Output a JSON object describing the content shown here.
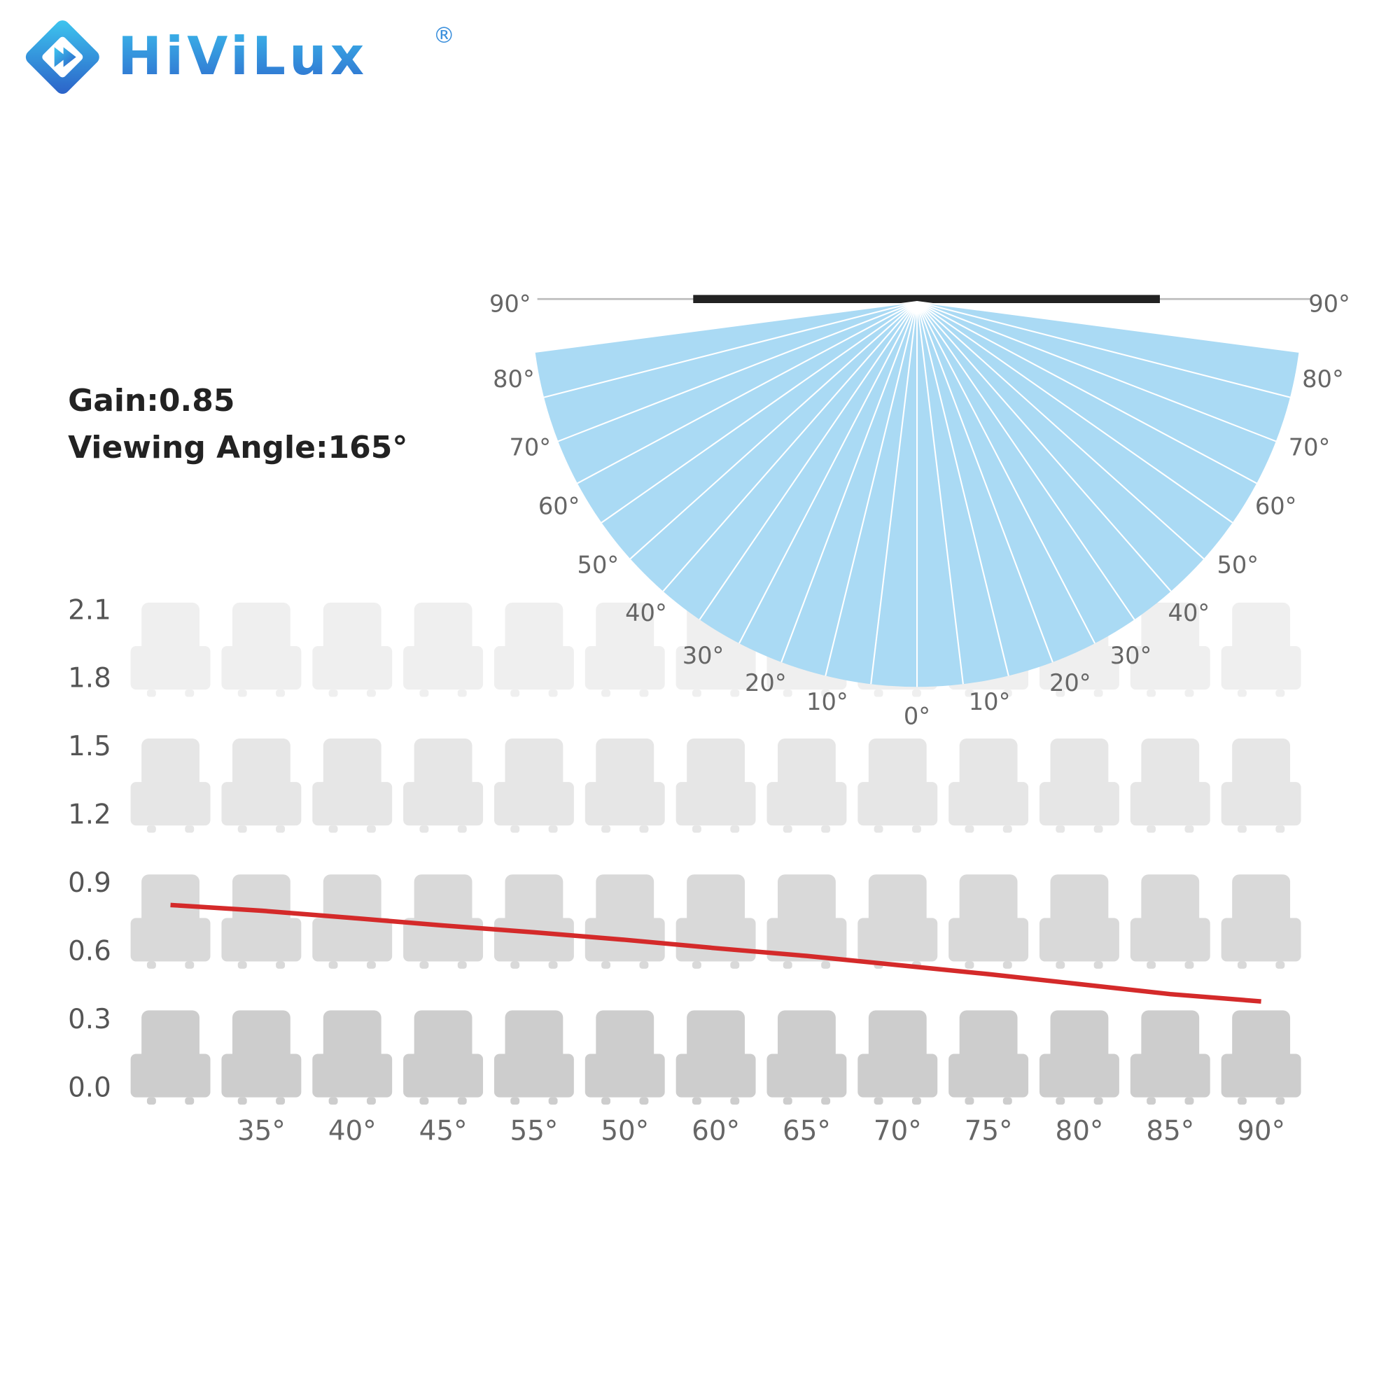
{
  "header": {
    "brand": "HiViLux",
    "registered": "®"
  },
  "specs": [
    "Gain:0.85",
    "Viewing Angle:165°"
  ],
  "viewing_diagram": {
    "left": [
      "90°",
      "80°",
      "70°",
      "60°",
      "50°",
      "40°",
      "30°",
      "20°",
      "10°"
    ],
    "center": "0°",
    "right": [
      "10°",
      "20°",
      "30°",
      "40°",
      "50°",
      "60°",
      "70°",
      "80°",
      "90°"
    ]
  },
  "chart_data": {
    "type": "line",
    "categories": [
      null,
      "35°",
      "40°",
      "45°",
      "55°",
      "50°",
      "60°",
      "65°",
      "70°",
      "75°",
      "80°",
      "85°",
      "90°"
    ],
    "series": [
      {
        "color": "#d42a2a",
        "values": [
          0.81,
          0.785,
          0.753,
          0.72,
          0.69,
          0.657,
          0.62,
          0.586,
          0.546,
          0.506,
          0.462,
          0.418,
          0.386
        ]
      }
    ],
    "ylim": [
      0,
      2.1
    ],
    "yticks": [
      {
        "value": 0,
        "label": "0.0"
      },
      0.3,
      0.6,
      0.9,
      1.2,
      1.5,
      1.8,
      2.1
    ]
  }
}
